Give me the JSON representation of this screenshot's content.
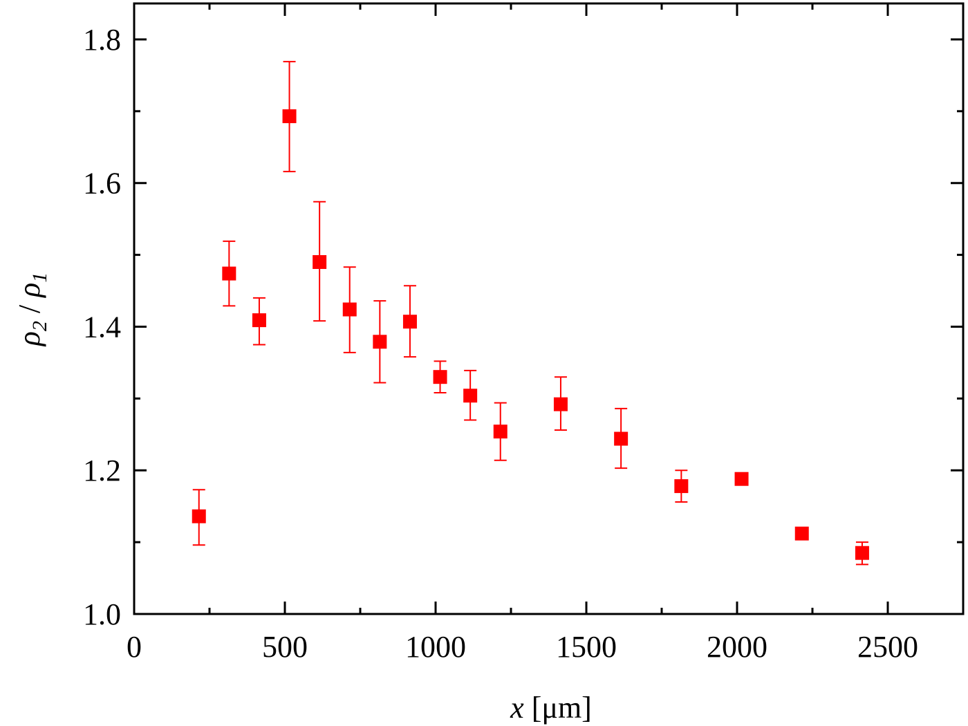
{
  "chart_data": {
    "type": "scatter",
    "title": "",
    "xlabel": "x [μm]",
    "xlabel_parts": {
      "var": "x",
      "unit": " [μm]"
    },
    "ylabel": "ρ2 / ρ1",
    "ylabel_parts": {
      "num": "ρ",
      "num_sub": "2",
      "sep": " / ",
      "den": "ρ",
      "den_sub": "1"
    },
    "xlim": [
      0,
      2750
    ],
    "ylim": [
      1.0,
      1.85
    ],
    "xticks": [
      0,
      500,
      1000,
      1500,
      2000,
      2500
    ],
    "xtick_labels": [
      "0",
      "500",
      "1000",
      "1500",
      "2000",
      "2500"
    ],
    "x_minor_ticks": [
      250,
      750,
      1250,
      1750,
      2250
    ],
    "yticks": [
      1.0,
      1.2,
      1.4,
      1.6,
      1.8
    ],
    "ytick_labels": [
      "1.0",
      "1.2",
      "1.4",
      "1.6",
      "1.8"
    ],
    "y_minor_ticks": [
      1.1,
      1.3,
      1.5,
      1.7
    ],
    "grid": false,
    "legend": null,
    "marker": "filled-square",
    "color": "#ff0000",
    "series": [
      {
        "name": "rho2/rho1",
        "x": [
          215,
          315,
          415,
          515,
          615,
          715,
          815,
          915,
          1015,
          1115,
          1215,
          1415,
          1615,
          1815,
          2015,
          2215,
          2415
        ],
        "y": [
          1.136,
          1.474,
          1.409,
          1.693,
          1.49,
          1.424,
          1.379,
          1.407,
          1.33,
          1.304,
          1.254,
          1.292,
          1.244,
          1.178,
          1.188,
          1.112,
          1.085
        ],
        "y_err_upper": [
          1.173,
          1.519,
          1.44,
          1.769,
          1.574,
          1.483,
          1.436,
          1.457,
          1.352,
          1.339,
          1.294,
          1.33,
          1.286,
          1.2,
          null,
          null,
          1.1
        ],
        "y_err_lower": [
          1.096,
          1.429,
          1.375,
          1.616,
          1.408,
          1.364,
          1.322,
          1.358,
          1.308,
          1.27,
          1.214,
          1.256,
          1.203,
          1.156,
          null,
          null,
          1.069
        ]
      }
    ]
  }
}
